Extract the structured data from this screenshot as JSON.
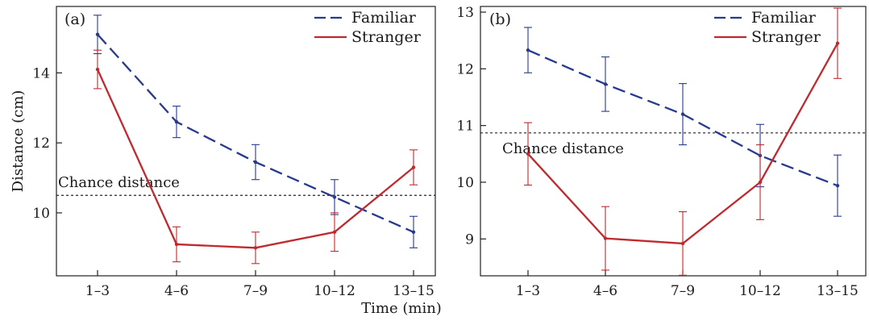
{
  "figure": {
    "shared_xlabel": "Time (min)"
  },
  "chart_data": [
    {
      "type": "line",
      "panel_label": "(a)",
      "ylabel": "Distance (cm)",
      "xlabel": "Time (min)",
      "categories": [
        "1–3",
        "4–6",
        "7–9",
        "10–12",
        "13–15"
      ],
      "ylim": [
        8.2,
        15.9
      ],
      "yticks": [
        10,
        12,
        14
      ],
      "grid": false,
      "legend": "top-right",
      "reference_line": {
        "label": "Chance distance",
        "value": 10.5,
        "style": "dotted"
      },
      "series": [
        {
          "name": "Familiar",
          "color": "#283a8c",
          "style": "dashed",
          "values": [
            15.1,
            12.6,
            11.45,
            10.45,
            9.45
          ],
          "error": [
            0.55,
            0.45,
            0.5,
            0.5,
            0.45
          ]
        },
        {
          "name": "Stranger",
          "color": "#bf2a2f",
          "style": "solid",
          "values": [
            14.1,
            9.1,
            9.0,
            9.45,
            11.3
          ],
          "error": [
            0.55,
            0.5,
            0.45,
            0.55,
            0.5
          ]
        }
      ]
    },
    {
      "type": "line",
      "panel_label": "(b)",
      "ylabel": "",
      "xlabel": "Time (min)",
      "categories": [
        "1–3",
        "4–6",
        "7–9",
        "10–12",
        "13–15"
      ],
      "ylim": [
        8.35,
        13.1
      ],
      "yticks": [
        9,
        10,
        11,
        12,
        13
      ],
      "grid": false,
      "legend": "top-right",
      "reference_line": {
        "label": "Chance distance",
        "value": 10.87,
        "style": "dotted"
      },
      "series": [
        {
          "name": "Familiar",
          "color": "#283a8c",
          "style": "dashed",
          "values": [
            12.33,
            11.73,
            11.2,
            10.47,
            9.94
          ],
          "error": [
            0.4,
            0.48,
            0.54,
            0.55,
            0.54
          ]
        },
        {
          "name": "Stranger",
          "color": "#bf2a2f",
          "style": "solid",
          "values": [
            10.5,
            9.01,
            8.92,
            10.0,
            12.45
          ],
          "error": [
            0.55,
            0.56,
            0.56,
            0.66,
            0.62
          ]
        }
      ]
    }
  ]
}
